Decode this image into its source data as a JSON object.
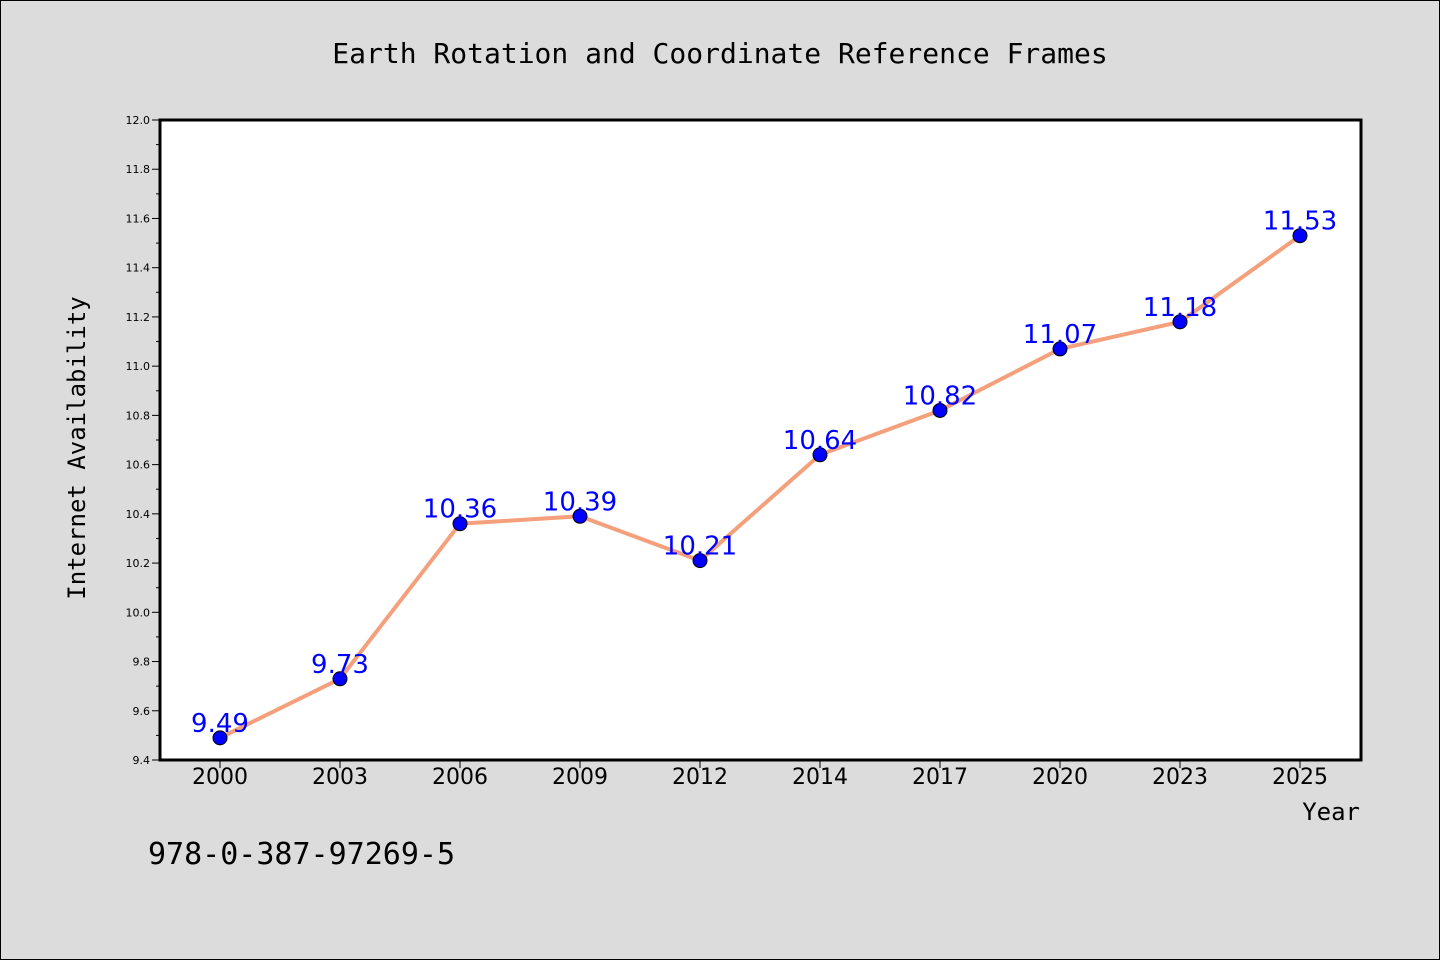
{
  "chart_data": {
    "type": "line",
    "title": "Earth Rotation and Coordinate Reference Frames",
    "xlabel": "Year",
    "ylabel": "Internet Availability",
    "categories": [
      "2000",
      "2003",
      "2006",
      "2009",
      "2012",
      "2014",
      "2017",
      "2020",
      "2023",
      "2025"
    ],
    "series": [
      {
        "values": [
          9.49,
          9.73,
          10.36,
          10.39,
          10.21,
          10.64,
          10.82,
          11.07,
          11.18,
          11.53
        ],
        "data_labels": [
          "9.49",
          "9.73",
          "10.36",
          "10.39",
          "10.21",
          "10.64",
          "10.82",
          "11.07",
          "11.18",
          "11.53"
        ]
      }
    ],
    "ylim": [
      9.4,
      12.0
    ],
    "yticks": [
      "9.4",
      "9.6",
      "9.8",
      "10.0",
      "10.2",
      "10.4",
      "10.6",
      "10.8",
      "11.0",
      "11.2",
      "11.4",
      "11.6",
      "11.8",
      "12.0"
    ],
    "grid": false,
    "legend": "none",
    "colors": {
      "line": "#f4a07c",
      "marker": "#0000ff",
      "label": "#0000ff",
      "background": "#dcdcdc",
      "plot_background": "#ffffff"
    }
  },
  "footer": {
    "text": "978-0-387-97269-5"
  }
}
